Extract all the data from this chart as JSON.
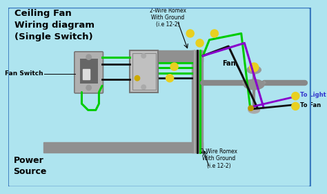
{
  "title": "Ceiling Fan\nWiring diagram\n(Single Switch)",
  "bg_color": "#aee4ef",
  "border_color": "#3a7abf",
  "conduit_color": "#909090",
  "wire_green": "#00cc00",
  "wire_black": "#111111",
  "wire_blue": "#3333cc",
  "wire_purple": "#8800cc",
  "wire_gray": "#aaaaaa",
  "connector_yellow": "#e8d020",
  "switch_body": "#aaaaaa",
  "label_fan_switch": "Fan Switch",
  "label_power_source": "Power\nSource",
  "label_fan": "Fan",
  "label_to_fan": "To Fan",
  "label_to_light": "To Light",
  "label_top_romex": "2-Wire Romex\nWith Ground\n(i.e 12-2)",
  "label_bottom_romex": "2-Wire Romex\nWith Ground\n(i.e 12-2)"
}
